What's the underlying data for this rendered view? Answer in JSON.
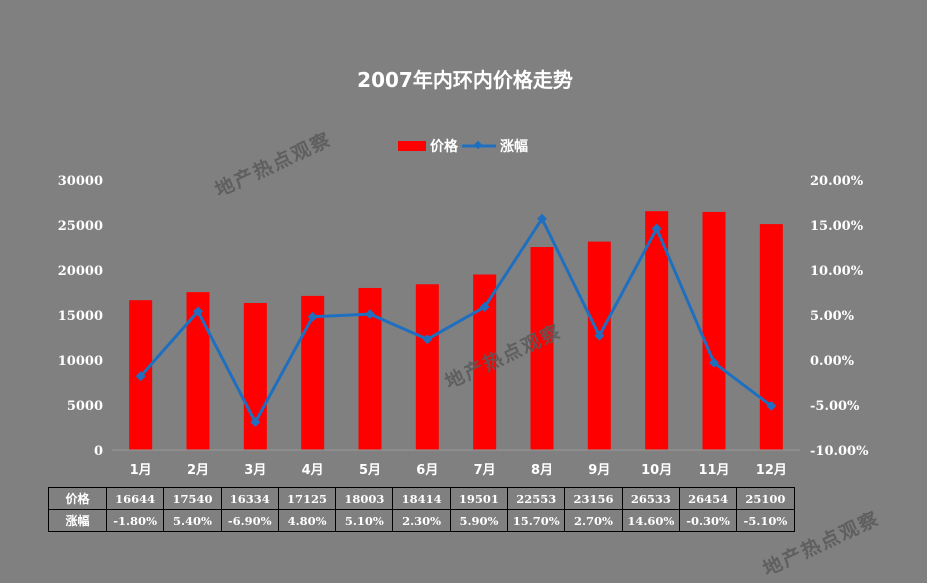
{
  "chart_data": {
    "type": "bar+line",
    "title": "2007年内环内价格走势",
    "categories": [
      "1月",
      "2月",
      "3月",
      "4月",
      "5月",
      "6月",
      "7月",
      "8月",
      "9月",
      "10月",
      "11月",
      "12月"
    ],
    "series": [
      {
        "name": "价格",
        "type": "bar",
        "axis": "left",
        "color": "#ff0000",
        "values": [
          16644,
          17540,
          16334,
          17125,
          18003,
          18414,
          19501,
          22553,
          23156,
          26533,
          26454,
          25100
        ]
      },
      {
        "name": "涨幅",
        "type": "line",
        "axis": "right",
        "color": "#1f6fc0",
        "values": [
          -1.8,
          5.4,
          -6.9,
          4.8,
          5.1,
          2.3,
          5.9,
          15.7,
          2.7,
          14.6,
          -0.3,
          -5.1
        ]
      }
    ],
    "y_left": {
      "min": 0,
      "max": 30000,
      "ticks": [
        "0",
        "5000",
        "10000",
        "15000",
        "20000",
        "25000",
        "30000"
      ]
    },
    "y_right": {
      "min": -10,
      "max": 20,
      "ticks": [
        "-10.00%",
        "-5.00%",
        "0.00%",
        "5.00%",
        "10.00%",
        "15.00%",
        "20.00%"
      ]
    },
    "legend_position": "top",
    "grid": false
  },
  "table": {
    "row_labels": [
      "价格",
      "涨幅"
    ],
    "price_cells": [
      "16644",
      "17540",
      "16334",
      "17125",
      "18003",
      "18414",
      "19501",
      "22553",
      "23156",
      "26533",
      "26454",
      "25100"
    ],
    "change_cells": [
      "-1.80%",
      "5.40%",
      "-6.90%",
      "4.80%",
      "5.10%",
      "2.30%",
      "5.90%",
      "15.70%",
      "2.70%",
      "14.60%",
      "-0.30%",
      "-5.10%"
    ]
  },
  "watermark": "地产热点观察"
}
